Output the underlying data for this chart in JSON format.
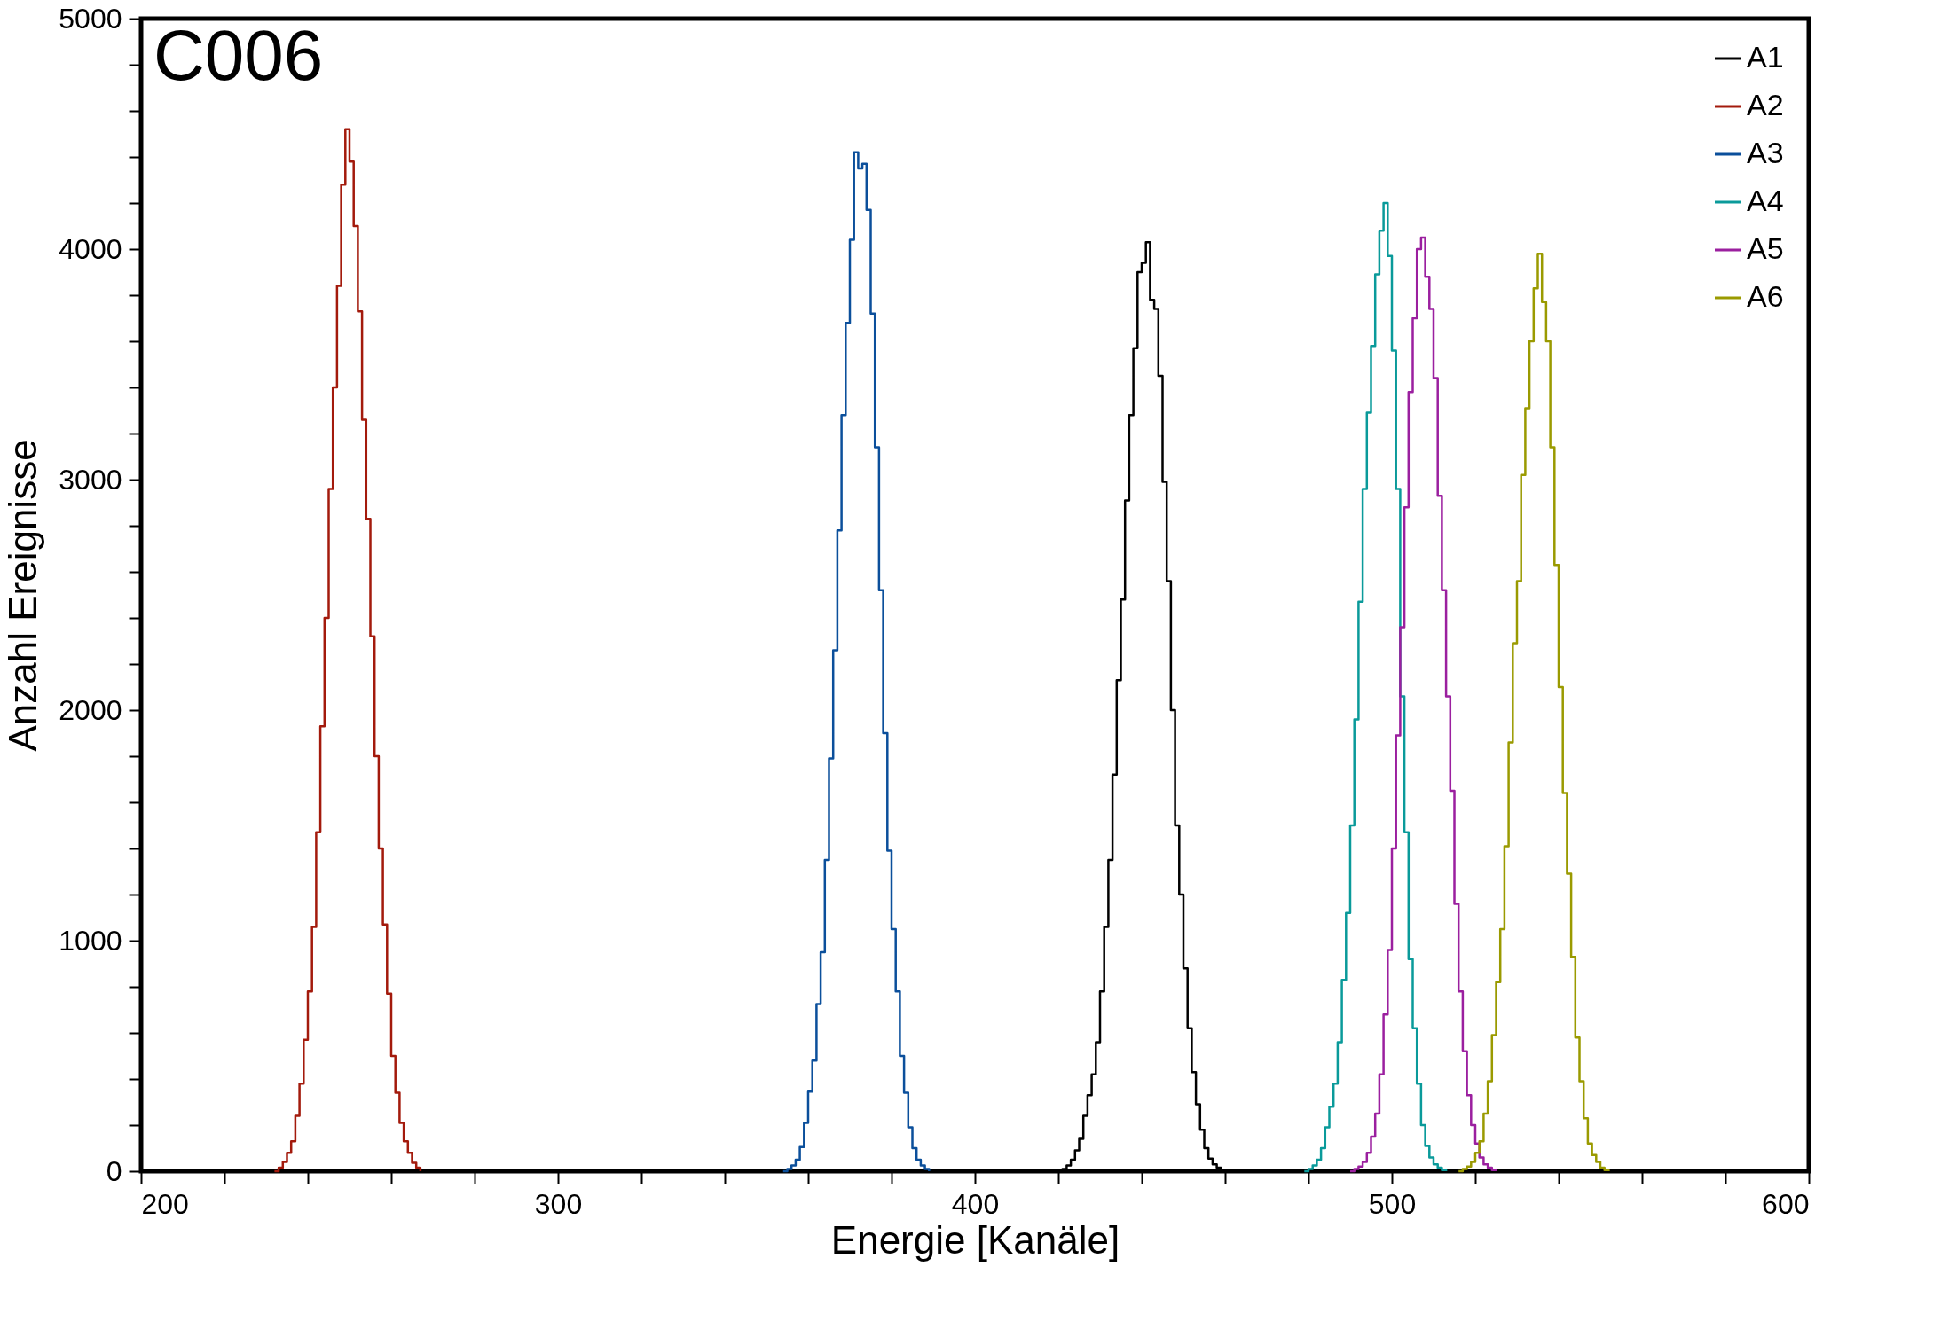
{
  "chart_data": {
    "type": "step",
    "title": "C006",
    "xlabel": "Energie [Kanäle]",
    "ylabel": "Anzahl Ereignisse",
    "xlim": [
      200,
      600
    ],
    "ylim": [
      0,
      5000
    ],
    "xticks": [
      200,
      {
        "value": 220,
        "label": null
      },
      {
        "value": 240,
        "label": null
      },
      {
        "value": 260,
        "label": null
      },
      {
        "value": 280,
        "label": null
      },
      300,
      {
        "value": 320,
        "label": null
      },
      {
        "value": 340,
        "label": null
      },
      {
        "value": 360,
        "label": null
      },
      {
        "value": 380,
        "label": null
      },
      400,
      {
        "value": 420,
        "label": null
      },
      {
        "value": 440,
        "label": null
      },
      {
        "value": 460,
        "label": null
      },
      {
        "value": 480,
        "label": null
      },
      500,
      {
        "value": 520,
        "label": null
      },
      {
        "value": 540,
        "label": null
      },
      {
        "value": 560,
        "label": null
      },
      {
        "value": 580,
        "label": null
      },
      600
    ],
    "yticks": [
      0,
      {
        "value": 200,
        "label": null
      },
      {
        "value": 400,
        "label": null
      },
      {
        "value": 600,
        "label": null
      },
      {
        "value": 800,
        "label": null
      },
      1000,
      {
        "value": 1200,
        "label": null
      },
      {
        "value": 1400,
        "label": null
      },
      {
        "value": 1600,
        "label": null
      },
      {
        "value": 1800,
        "label": null
      },
      2000,
      {
        "value": 2200,
        "label": null
      },
      {
        "value": 2400,
        "label": null
      },
      {
        "value": 2600,
        "label": null
      },
      {
        "value": 2800,
        "label": null
      },
      3000,
      {
        "value": 3200,
        "label": null
      },
      {
        "value": 3400,
        "label": null
      },
      {
        "value": 3600,
        "label": null
      },
      {
        "value": 3800,
        "label": null
      },
      4000,
      {
        "value": 4200,
        "label": null
      },
      {
        "value": 4400,
        "label": null
      },
      {
        "value": 4600,
        "label": null
      },
      {
        "value": 4800,
        "label": null
      },
      5000
    ],
    "grid": false,
    "legend": "top right",
    "line_style": "solid",
    "series": [
      {
        "name": "A1",
        "color": "#000000",
        "x": [
          420,
          421,
          422,
          423,
          424,
          425,
          426,
          427,
          428,
          429,
          430,
          431,
          432,
          433,
          434,
          435,
          436,
          437,
          438,
          439,
          440,
          441,
          442,
          443,
          444,
          445,
          446,
          447,
          448,
          449,
          450,
          451,
          452,
          453,
          454,
          455,
          456,
          457,
          458,
          459,
          460
        ],
        "values": [
          0,
          10,
          25,
          50,
          90,
          140,
          240,
          330,
          420,
          560,
          780,
          1060,
          1350,
          1720,
          2130,
          2480,
          2910,
          3280,
          3570,
          3900,
          3940,
          4030,
          3780,
          3740,
          3450,
          2990,
          2560,
          2000,
          1500,
          1200,
          880,
          620,
          430,
          290,
          180,
          100,
          55,
          30,
          15,
          5,
          0
        ]
      },
      {
        "name": "A2",
        "color": "#a31a0c",
        "x": [
          232,
          233,
          234,
          235,
          236,
          237,
          238,
          239,
          240,
          241,
          242,
          243,
          244,
          245,
          246,
          247,
          248,
          249,
          250,
          251,
          252,
          253,
          254,
          255,
          256,
          257,
          258,
          259,
          260,
          261,
          262,
          263,
          264,
          265,
          266,
          267
        ],
        "values": [
          0,
          15,
          40,
          80,
          130,
          240,
          380,
          570,
          780,
          1060,
          1470,
          1930,
          2400,
          2960,
          3400,
          3840,
          4280,
          4520,
          4380,
          4100,
          3730,
          3260,
          2830,
          2320,
          1800,
          1400,
          1070,
          770,
          500,
          340,
          210,
          130,
          80,
          37,
          15,
          0
        ]
      },
      {
        "name": "A3",
        "color": "#0b4f9b",
        "x": [
          354,
          355,
          356,
          357,
          358,
          359,
          360,
          361,
          362,
          363,
          364,
          365,
          366,
          367,
          368,
          369,
          370,
          371,
          372,
          373,
          374,
          375,
          376,
          377,
          378,
          379,
          380,
          381,
          382,
          383,
          384,
          385,
          386,
          387,
          388,
          389
        ],
        "values": [
          0,
          10,
          25,
          50,
          105,
          210,
          345,
          480,
          725,
          950,
          1350,
          1790,
          2260,
          2780,
          3280,
          3680,
          4040,
          4420,
          4350,
          4370,
          4170,
          3720,
          3140,
          2520,
          1900,
          1390,
          1050,
          780,
          500,
          340,
          190,
          100,
          50,
          25,
          10,
          0
        ]
      },
      {
        "name": "A4",
        "color": "#0a9a9a",
        "x": [
          479,
          480,
          481,
          482,
          483,
          484,
          485,
          486,
          487,
          488,
          489,
          490,
          491,
          492,
          493,
          494,
          495,
          496,
          497,
          498,
          499,
          500,
          501,
          502,
          503,
          504,
          505,
          506,
          507,
          508,
          509,
          510,
          511,
          512,
          513
        ],
        "values": [
          0,
          10,
          25,
          50,
          100,
          190,
          280,
          380,
          560,
          830,
          1120,
          1500,
          1960,
          2470,
          2960,
          3290,
          3580,
          3890,
          4080,
          4200,
          3970,
          3560,
          2960,
          2060,
          1470,
          920,
          620,
          380,
          200,
          110,
          60,
          30,
          15,
          5,
          0
        ]
      },
      {
        "name": "A5",
        "color": "#9b1f9f",
        "x": [
          490,
          491,
          492,
          493,
          494,
          495,
          496,
          497,
          498,
          499,
          500,
          501,
          502,
          503,
          504,
          505,
          506,
          507,
          508,
          509,
          510,
          511,
          512,
          513,
          514,
          515,
          516,
          517,
          518,
          519,
          520,
          521,
          522,
          523,
          524,
          525
        ],
        "values": [
          0,
          10,
          20,
          40,
          80,
          150,
          250,
          420,
          680,
          960,
          1400,
          1890,
          2360,
          2880,
          3380,
          3700,
          4000,
          4050,
          3880,
          3740,
          3440,
          2930,
          2520,
          2060,
          1650,
          1160,
          780,
          520,
          330,
          200,
          120,
          60,
          30,
          15,
          5,
          0
        ]
      },
      {
        "name": "A6",
        "color": "#9a9a00",
        "x": [
          516,
          517,
          518,
          519,
          520,
          521,
          522,
          523,
          524,
          525,
          526,
          527,
          528,
          529,
          530,
          531,
          532,
          533,
          534,
          535,
          536,
          537,
          538,
          539,
          540,
          541,
          542,
          543,
          544,
          545,
          546,
          547,
          548,
          549,
          550,
          551,
          552
        ],
        "values": [
          0,
          10,
          20,
          40,
          80,
          130,
          250,
          390,
          590,
          820,
          1050,
          1410,
          1860,
          2290,
          2560,
          3020,
          3310,
          3600,
          3830,
          3980,
          3770,
          3600,
          3140,
          2630,
          2100,
          1640,
          1290,
          930,
          580,
          390,
          230,
          120,
          70,
          40,
          15,
          5,
          0
        ]
      }
    ]
  }
}
